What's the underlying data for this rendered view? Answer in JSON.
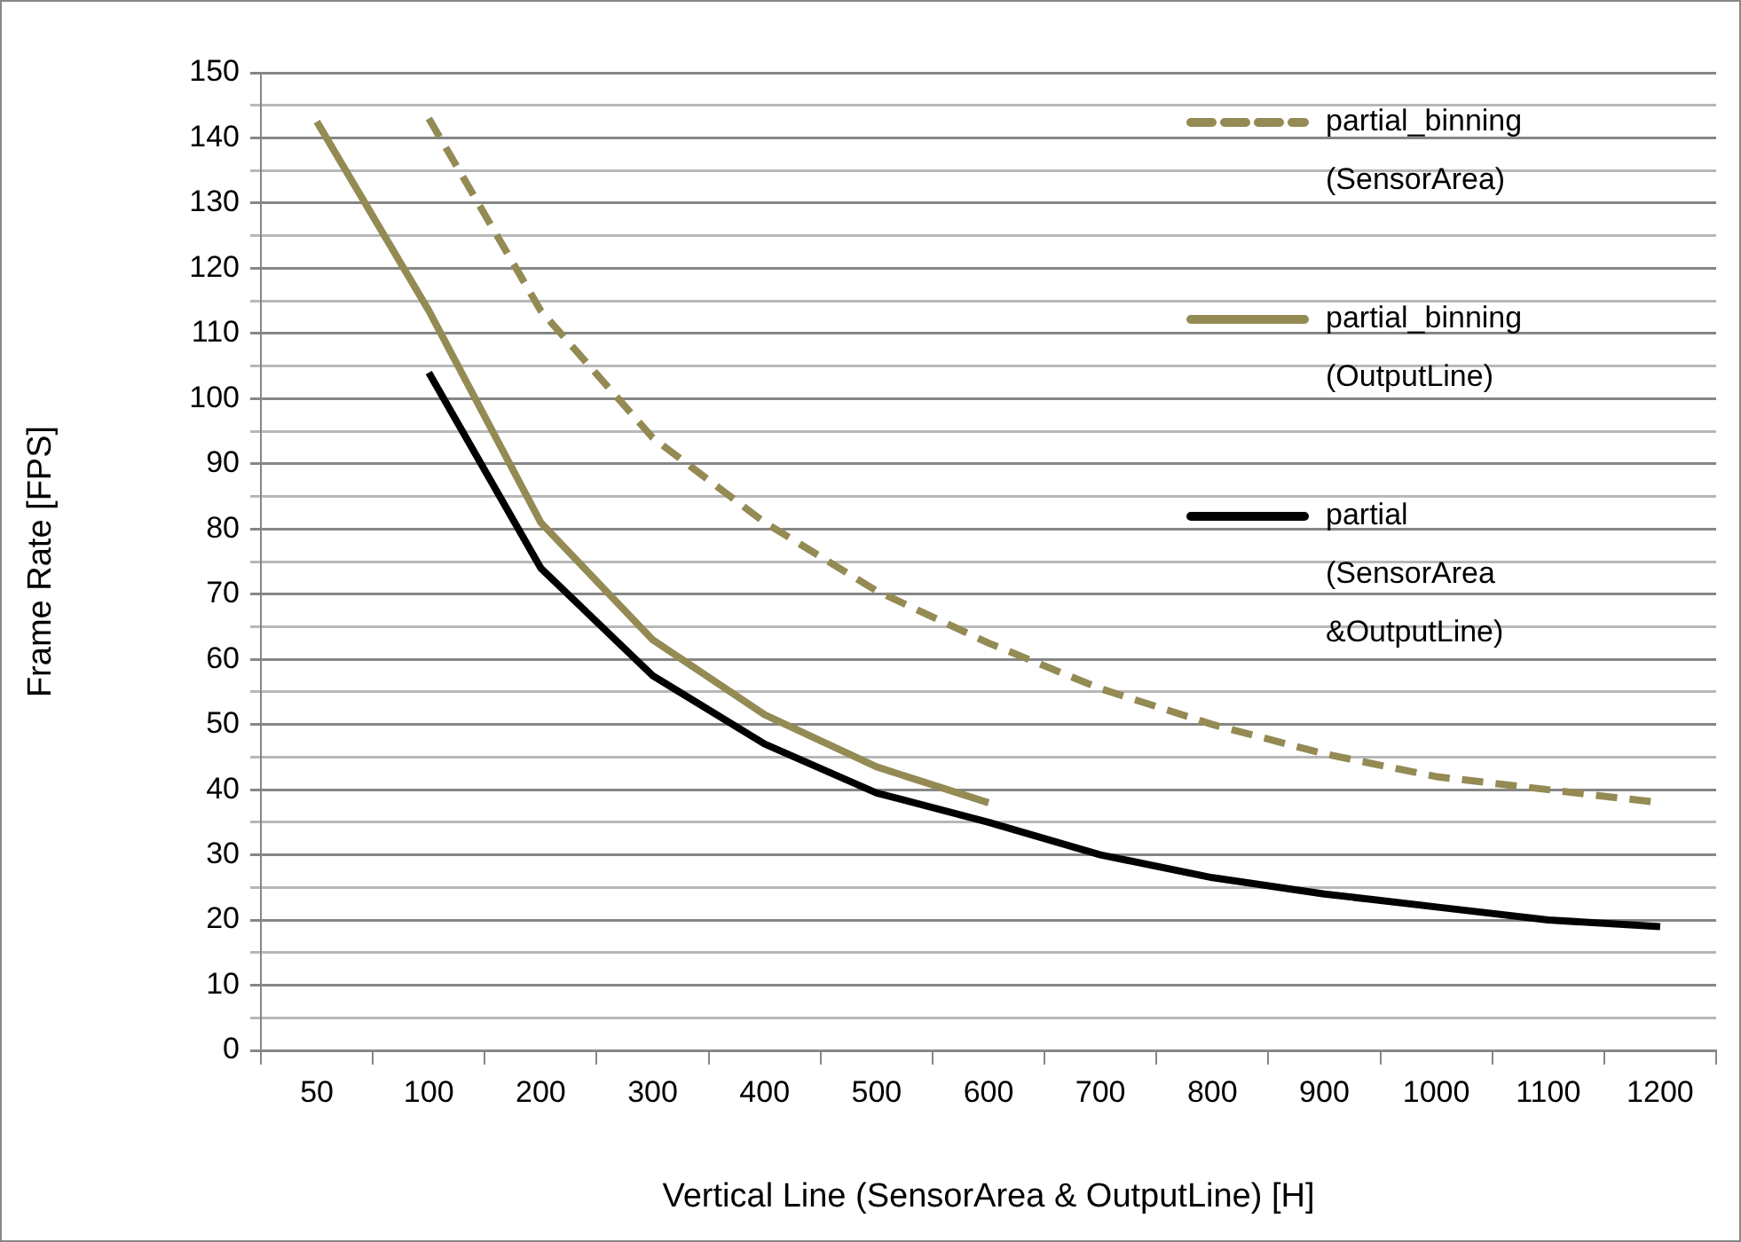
{
  "chart_data": {
    "type": "line",
    "xlabel": "Vertical Line (SensorArea & OutputLine) [H]",
    "ylabel": "Frame Rate [FPS]",
    "categories": [
      "50",
      "100",
      "200",
      "300",
      "400",
      "500",
      "600",
      "700",
      "800",
      "900",
      "1000",
      "1100",
      "1200"
    ],
    "series": [
      {
        "name": "partial_binning (SensorArea)",
        "color": "#948a54",
        "line_style": "dashed",
        "values": [
          null,
          143,
          113.5,
          94,
          81,
          70.5,
          62.5,
          55.5,
          50,
          45.5,
          42,
          40,
          38
        ]
      },
      {
        "name": "partial_binning (OutputLine)",
        "color": "#948a54",
        "line_style": "solid",
        "values": [
          142.5,
          113.5,
          81,
          63,
          51.5,
          43.5,
          38,
          null,
          null,
          null,
          null,
          null,
          null
        ]
      },
      {
        "name": "partial (SensorArea &OutputLine)",
        "color": "#000000",
        "line_style": "solid",
        "values": [
          null,
          104,
          74,
          57.5,
          47,
          39.5,
          35,
          30,
          26.5,
          24,
          22,
          20,
          19
        ]
      }
    ],
    "ylim": [
      0,
      150
    ],
    "yticks": [
      0,
      {
        "value": 5,
        "label": null
      },
      10,
      {
        "value": 15,
        "label": null
      },
      20,
      {
        "value": 25,
        "label": null
      },
      30,
      {
        "value": 35,
        "label": null
      },
      40,
      {
        "value": 45,
        "label": null
      },
      50,
      {
        "value": 55,
        "label": null
      },
      60,
      {
        "value": 65,
        "label": null
      },
      70,
      {
        "value": 75,
        "label": null
      },
      80,
      {
        "value": 85,
        "label": null
      },
      90,
      {
        "value": 95,
        "label": null
      },
      100,
      {
        "value": 105,
        "label": null
      },
      110,
      {
        "value": 115,
        "label": null
      },
      120,
      {
        "value": 125,
        "label": null
      },
      130,
      {
        "value": 135,
        "label": null
      },
      140,
      {
        "value": 145,
        "label": null
      },
      150
    ],
    "grid": "y",
    "legend": "top right",
    "marker": "none"
  }
}
